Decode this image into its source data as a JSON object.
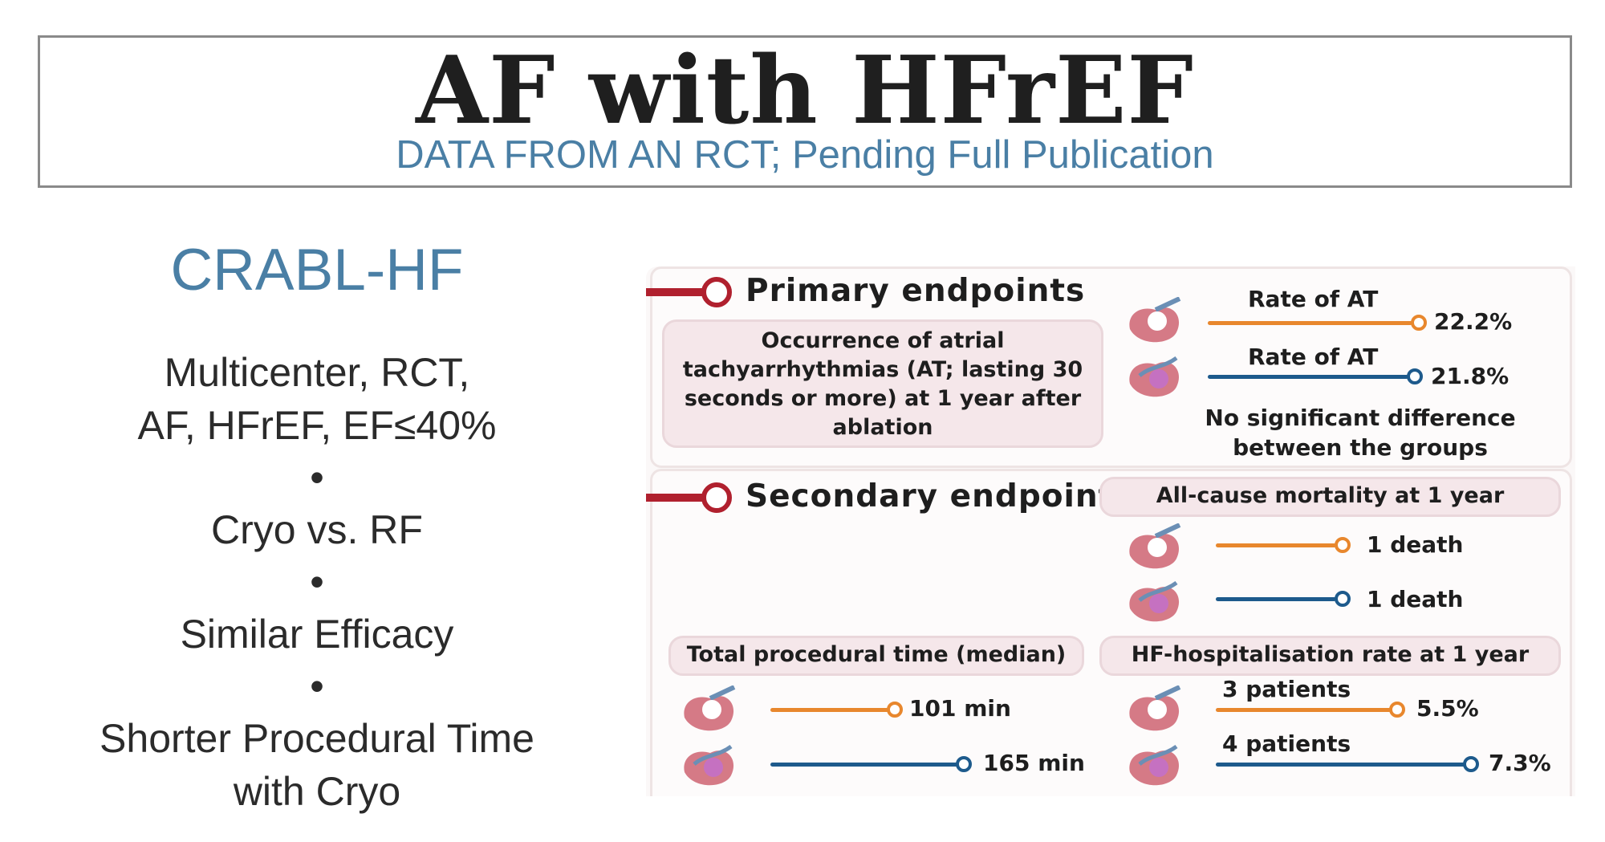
{
  "header": {
    "title": "AF with HFrEF",
    "subtitle": "DATA FROM AN RCT; Pending Full Publication"
  },
  "summary": {
    "trial": "CRABL-HF",
    "line1": "Multicenter, RCT,",
    "line2": "AF, HFrEF, EF≤40%",
    "bullet": "•",
    "line3": "Cryo vs. RF",
    "line4": "Similar Efficacy",
    "line5": "Shorter Procedural Time",
    "line6": "with Cryo"
  },
  "infographic": {
    "primary": {
      "heading": "Primary endpoints",
      "description": [
        "Occurrence of atrial",
        "tachyarrhythmias (AT; lasting 30",
        "seconds or more) at 1 year after",
        "ablation"
      ],
      "cryo_label": "Rate of  AT",
      "cryo_value": "22.2%",
      "rf_label": "Rate of  AT",
      "rf_value": "21.8%",
      "note": [
        "No significant difference",
        "between the groups"
      ]
    },
    "secondary": {
      "heading": "Secondary endpoints",
      "mortality": {
        "title": "All-cause mortality at 1 year",
        "cryo_value": "1 death",
        "rf_value": "1 death"
      },
      "procedural": {
        "title": "Total procedural time (median)",
        "cryo_value": "101 min",
        "rf_value": "165 min",
        "cryo_minutes": 101,
        "rf_minutes": 165
      },
      "hf": {
        "title": "HF-hospitalisation rate at 1 year",
        "cryo_label": "3 patients",
        "cryo_value": "5.5%",
        "rf_label": "4 patients",
        "rf_value": "7.3%"
      }
    },
    "colors": {
      "cryo": "#e8872d",
      "rf": "#1d5a8c",
      "marker": "#b0202e"
    }
  }
}
